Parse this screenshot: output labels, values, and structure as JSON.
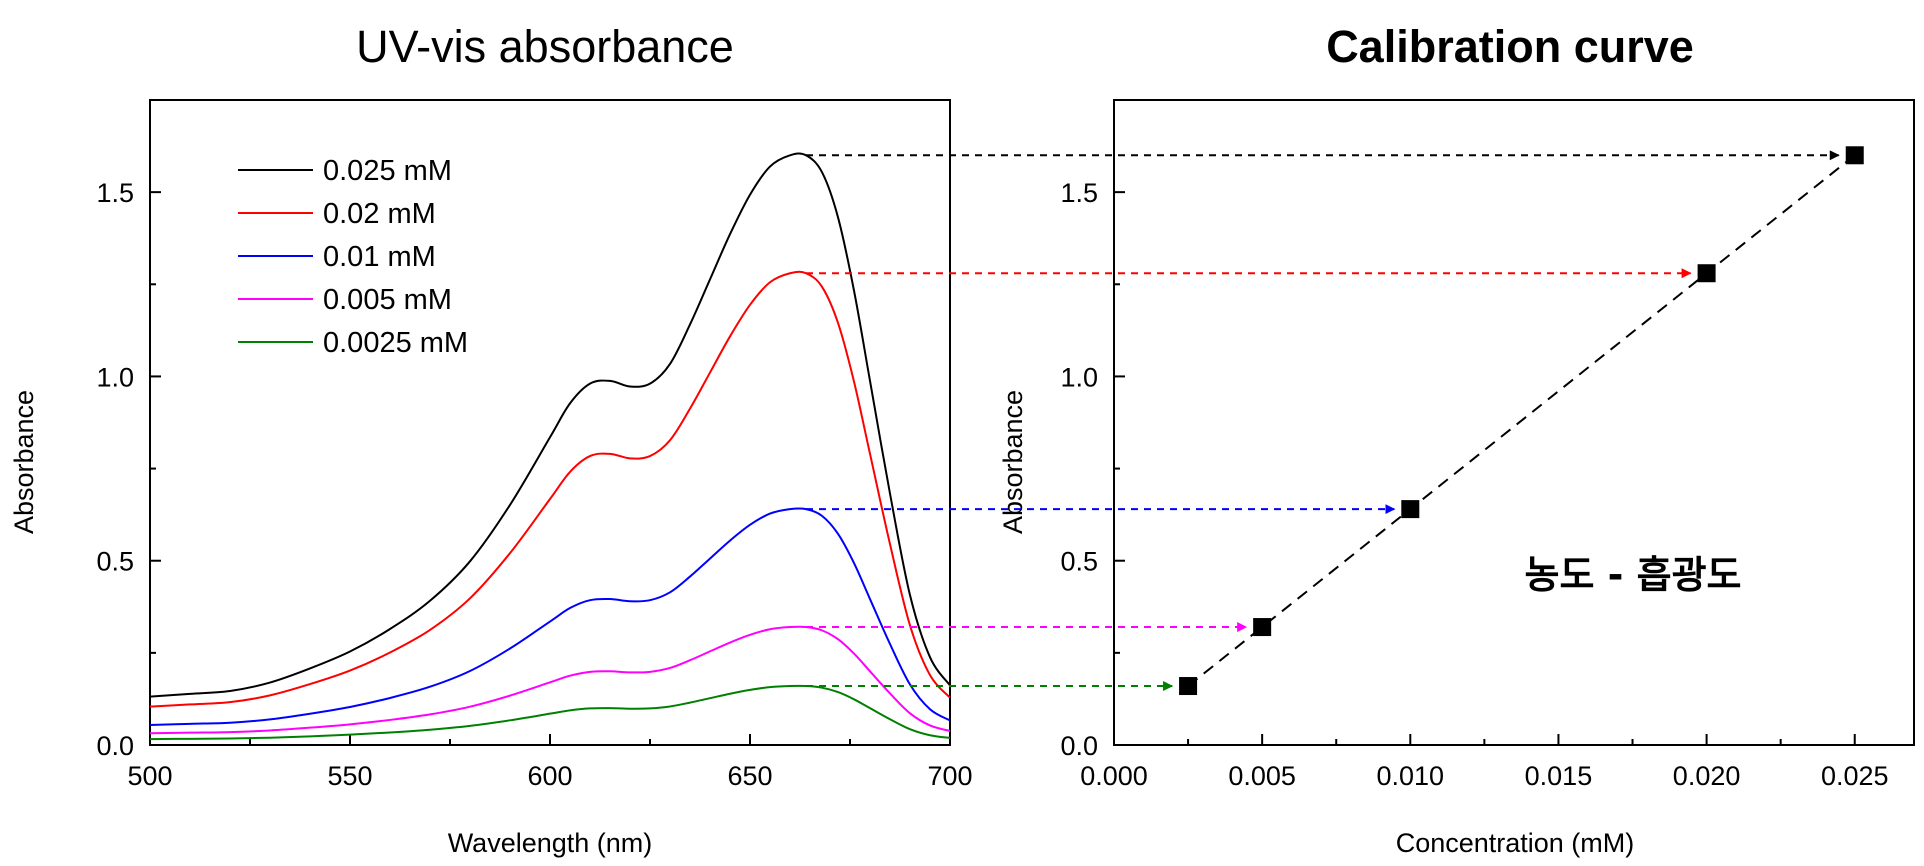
{
  "chart_data": [
    {
      "type": "line",
      "title": "UV-vis absorbance",
      "xlabel": "Wavelength (nm)",
      "ylabel": "Absorbance",
      "xlim": [
        500,
        700
      ],
      "ylim": [
        0,
        1.75
      ],
      "xticks": [
        500,
        550,
        600,
        650,
        700
      ],
      "xtick_labels": [
        "500",
        "550",
        "600",
        "650",
        "700"
      ],
      "yticks": [
        0.0,
        0.5,
        1.0,
        1.5
      ],
      "ytick_labels": [
        "0.0",
        "0.5",
        "1.0",
        "1.5"
      ],
      "legend_position": "top-left",
      "x": [
        500,
        510,
        520,
        530,
        540,
        550,
        560,
        570,
        580,
        590,
        600,
        605,
        610,
        615,
        620,
        625,
        630,
        635,
        640,
        645,
        650,
        655,
        660,
        664,
        668,
        672,
        676,
        680,
        685,
        690,
        695,
        700
      ],
      "profile": [
        0.04,
        0.045,
        0.05,
        0.065,
        0.09,
        0.12,
        0.16,
        0.21,
        0.28,
        0.38,
        0.5,
        0.56,
        0.595,
        0.6,
        0.59,
        0.595,
        0.63,
        0.7,
        0.78,
        0.86,
        0.93,
        0.98,
        1.0,
        1.0,
        0.97,
        0.89,
        0.76,
        0.6,
        0.4,
        0.22,
        0.11,
        0.06
      ],
      "series": [
        {
          "name": "0.025 mM",
          "color": "#000000",
          "scale": 1.6,
          "baseline": 0.07
        },
        {
          "name": "0.02 mM",
          "color": "#ff0000",
          "scale": 1.28,
          "baseline": 0.055
        },
        {
          "name": "0.01 mM",
          "color": "#0000ff",
          "scale": 0.64,
          "baseline": 0.03
        },
        {
          "name": "0.005 mM",
          "color": "#ff00ff",
          "scale": 0.32,
          "baseline": 0.02
        },
        {
          "name": "0.0025 mM",
          "color": "#008000",
          "scale": 0.16,
          "baseline": 0.01
        }
      ]
    },
    {
      "type": "scatter",
      "title": "Calibration curve",
      "xlabel": "Concentration (mM)",
      "ylabel": "Absorbance",
      "xlim": [
        0.0,
        0.027
      ],
      "ylim": [
        0,
        1.75
      ],
      "xticks": [
        0.0,
        0.005,
        0.01,
        0.015,
        0.02,
        0.025
      ],
      "xtick_labels": [
        "0.000",
        "0.005",
        "0.010",
        "0.015",
        "0.020",
        "0.025"
      ],
      "yticks": [
        0.0,
        0.5,
        1.0,
        1.5
      ],
      "ytick_labels": [
        "0.0",
        "0.5",
        "1.0",
        "1.5"
      ],
      "x": [
        0.0025,
        0.005,
        0.01,
        0.02,
        0.025
      ],
      "y": [
        0.16,
        0.32,
        0.64,
        1.28,
        1.6
      ],
      "arrow_colors": [
        "#008000",
        "#ff00ff",
        "#0000ff",
        "#ff0000",
        "#000000"
      ],
      "peak_wavelength": 664,
      "annotation": "농도 - 흡광도"
    }
  ]
}
